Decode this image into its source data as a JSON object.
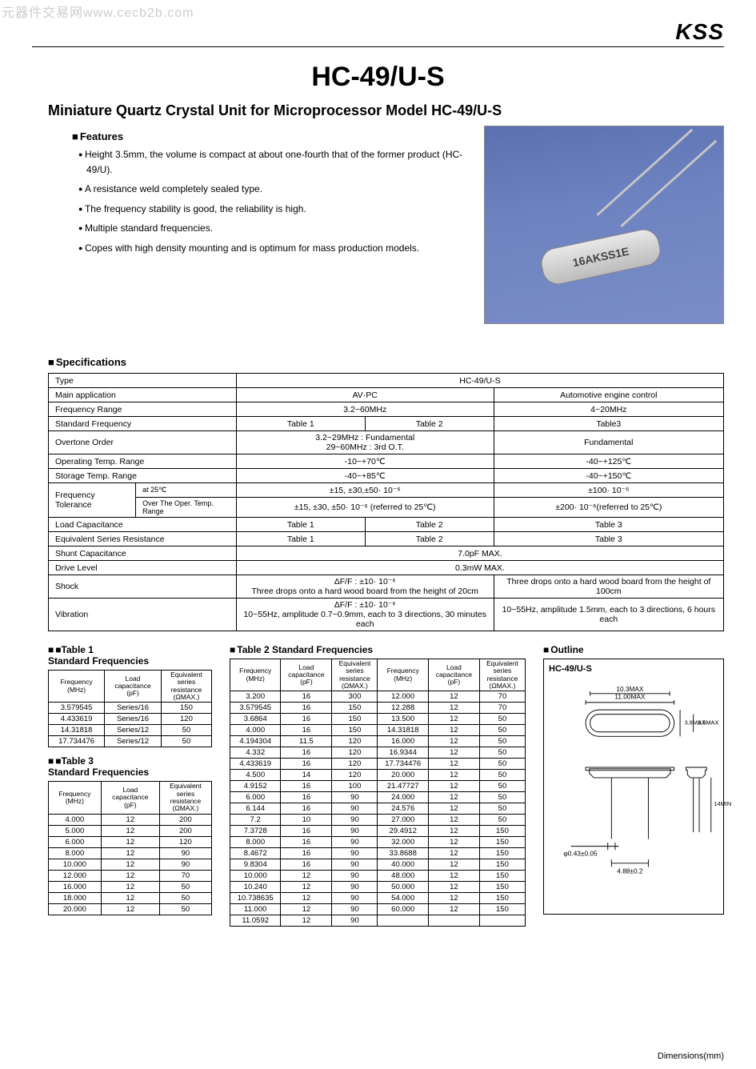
{
  "watermark": "元器件交易网www.cecb2b.com",
  "brand": "KSS",
  "title": "HC-49/U-S",
  "subtitle": "Miniature Quartz Crystal Unit for Microprocessor Model HC-49/U-S",
  "features_h": "Features",
  "features": [
    "Height 3.5mm, the volume is compact at about one-fourth that of the former product (HC-49/U).",
    "A resistance weld completely sealed type.",
    "The frequency stability is good, the reliability is high.",
    "Multiple standard frequencies.",
    "Copes with high density mounting and is optimum for mass production models."
  ],
  "crystal_label": "16AKSS1E",
  "spec_h": "Specifications",
  "spec": {
    "type_label": "Type",
    "type_val": "HC-49/U-S",
    "rows": [
      {
        "label": "Main application",
        "a": "AV·PC",
        "b": "Automotive engine control"
      },
      {
        "label": "Frequency Range",
        "a": "3.2~60MHz",
        "b": "4~20MHz"
      },
      {
        "label": "Standard Frequency",
        "a1": "Table 1",
        "a2": "Table 2",
        "b": "Table3"
      },
      {
        "label": "Overtone Order",
        "a": "3.2~29MHz : Fundamental\n29~60MHz : 3rd O.T.",
        "b": "Fundamental"
      },
      {
        "label": "Operating Temp. Range",
        "a": "-10~+70℃",
        "b": "-40~+125℃"
      },
      {
        "label": "Storage Temp. Range",
        "a": "-40~+85℃",
        "b": "-40~+150℃"
      },
      {
        "label": "Frequency Tolerance",
        "sub1": "at 25℃",
        "a1v": "±15, ±30,±50· 10⁻⁶",
        "b1v": "±100· 10⁻⁶",
        "sub2": "Over The Oper. Temp. Range",
        "a2v": "±15, ±30, ±50· 10⁻⁶ (referred to 25℃)",
        "b2v": "±200· 10⁻⁶(referred to 25℃)"
      },
      {
        "label": "Load Capacitance",
        "a1": "Table 1",
        "a2": "Table 2",
        "b": "Table 3"
      },
      {
        "label": "Equivalent Series Resistance",
        "a1": "Table 1",
        "a2": "Table 2",
        "b": "Table 3"
      },
      {
        "label": "Shunt Capacitance",
        "full": "7.0pF MAX."
      },
      {
        "label": "Drive Level",
        "full": "0.3mW MAX."
      },
      {
        "label": "Shock",
        "a": "ΔF/F : ±10· 10⁻⁶\nThree drops onto a hard wood board from the height of 20cm",
        "b": "Three drops onto a hard wood board from the height of 100cm"
      },
      {
        "label": "Vibration",
        "a": "ΔF/F : ±10· 10⁻⁶\n10~55Hz, amplitude 0.7~0.9mm, each to 3 directions, 30 minutes each",
        "b": "10~55Hz, amplitude 1.5mm, each to 3 directions, 6 hours each"
      }
    ]
  },
  "t1_h": "Table 1\nStandard Frequencies",
  "t3_h": "Table 3\nStandard Frequencies",
  "t2_h": "Table 2  Standard Frequencies",
  "outline_h": "Outline",
  "outline_title": "HC-49/U-S",
  "th": {
    "freq": "Frequency\n(MHz)",
    "load": "Load\ncapacitance\n(pF)",
    "esr": "Equivalent\nseries\nresistance\n(ΩMAX.)"
  },
  "table1": [
    [
      "3.579545",
      "Series/16",
      "150"
    ],
    [
      "4.433619",
      "Series/16",
      "120"
    ],
    [
      "14.31818",
      "Series/12",
      "50"
    ],
    [
      "17.734476",
      "Series/12",
      "50"
    ]
  ],
  "table3": [
    [
      "4.000",
      "12",
      "200"
    ],
    [
      "5.000",
      "12",
      "200"
    ],
    [
      "6.000",
      "12",
      "120"
    ],
    [
      "8.000",
      "12",
      "90"
    ],
    [
      "10.000",
      "12",
      "90"
    ],
    [
      "12.000",
      "12",
      "70"
    ],
    [
      "16.000",
      "12",
      "50"
    ],
    [
      "18.000",
      "12",
      "50"
    ],
    [
      "20.000",
      "12",
      "50"
    ]
  ],
  "table2": [
    [
      "3.200",
      "16",
      "300",
      "12.000",
      "12",
      "70"
    ],
    [
      "3.579545",
      "16",
      "150",
      "12.288",
      "12",
      "70"
    ],
    [
      "3.6864",
      "16",
      "150",
      "13.500",
      "12",
      "50"
    ],
    [
      "4.000",
      "16",
      "150",
      "14.31818",
      "12",
      "50"
    ],
    [
      "4.194304",
      "11.5",
      "120",
      "16.000",
      "12",
      "50"
    ],
    [
      "4.332",
      "16",
      "120",
      "16.9344",
      "12",
      "50"
    ],
    [
      "4.433619",
      "16",
      "120",
      "17.734476",
      "12",
      "50"
    ],
    [
      "4.500",
      "14",
      "120",
      "20.000",
      "12",
      "50"
    ],
    [
      "4.9152",
      "16",
      "100",
      "21.47727",
      "12",
      "50"
    ],
    [
      "6.000",
      "16",
      "90",
      "24.000",
      "12",
      "50"
    ],
    [
      "6.144",
      "16",
      "90",
      "24.576",
      "12",
      "50"
    ],
    [
      "7.2",
      "10",
      "90",
      "27.000",
      "12",
      "50"
    ],
    [
      "7.3728",
      "16",
      "90",
      "29.4912",
      "12",
      "150"
    ],
    [
      "8.000",
      "16",
      "90",
      "32.000",
      "12",
      "150"
    ],
    [
      "8.4672",
      "16",
      "90",
      "33.8688",
      "12",
      "150"
    ],
    [
      "9.8304",
      "16",
      "90",
      "40.000",
      "12",
      "150"
    ],
    [
      "10.000",
      "12",
      "90",
      "48.000",
      "12",
      "150"
    ],
    [
      "10.240",
      "12",
      "90",
      "50.000",
      "12",
      "150"
    ],
    [
      "10.738635",
      "12",
      "90",
      "54.000",
      "12",
      "150"
    ],
    [
      "11.000",
      "12",
      "90",
      "60.000",
      "12",
      "150"
    ],
    [
      "11.0592",
      "12",
      "90",
      "",
      "",
      ""
    ]
  ],
  "outline_dims": {
    "w1": "11.00MAX",
    "w2": "10.3MAX",
    "h1": "3.5MAX",
    "h2": "3.8MAX",
    "lead": "14MIN",
    "pitch": "4.88±0.2",
    "dia": "φ0.43±0.05"
  },
  "dims_label": "Dimensions(mm)"
}
